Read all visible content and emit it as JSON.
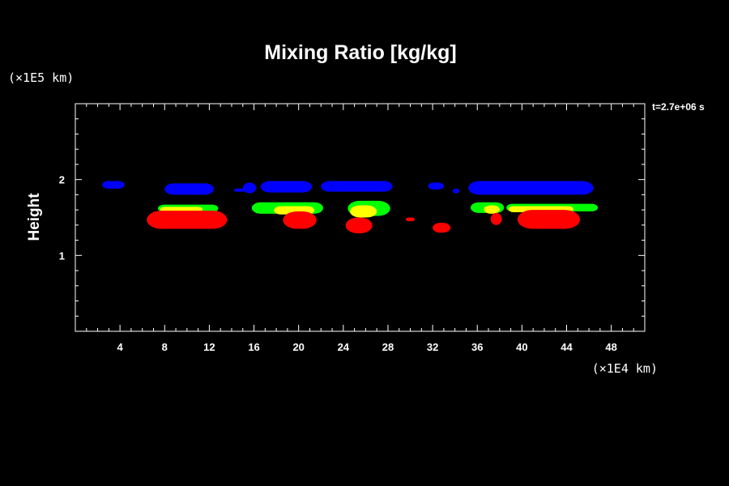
{
  "chart_data": {
    "type": "contour",
    "title": "Mixing Ratio [kg/kg]",
    "ylabel": "Height",
    "x_unit": "(×1E4 km)",
    "y_unit": "(×1E5 km)",
    "time_label": "t=2.7e+06 s",
    "xlim": [
      0,
      51
    ],
    "ylim": [
      0,
      3
    ],
    "x_ticks": [
      4,
      8,
      12,
      16,
      20,
      24,
      28,
      32,
      36,
      40,
      44,
      48
    ],
    "y_ticks": [
      1,
      2
    ],
    "x_minor_step": 1,
    "y_minor_step": 0.2,
    "colors": {
      "blue": "#0000ff",
      "green": "#00ff00",
      "yellow": "#ffff00",
      "red": "#ff0000"
    },
    "layers": [
      {
        "color": "blue",
        "blobs": [
          {
            "x": [
              2.4,
              4.4
            ],
            "y": [
              1.88,
              1.98
            ]
          },
          {
            "x": [
              8.0,
              12.4
            ],
            "y": [
              1.8,
              1.95
            ]
          },
          {
            "x": [
              14.2,
              15.2
            ],
            "y": [
              1.84,
              1.88
            ]
          },
          {
            "x": [
              15.0,
              16.2
            ],
            "y": [
              1.82,
              1.96
            ]
          },
          {
            "x": [
              16.6,
              21.2
            ],
            "y": [
              1.83,
              1.98
            ]
          },
          {
            "x": [
              22.0,
              28.4
            ],
            "y": [
              1.84,
              1.98
            ]
          },
          {
            "x": [
              31.6,
              33.0
            ],
            "y": [
              1.87,
              1.96
            ]
          },
          {
            "x": [
              33.8,
              34.4
            ],
            "y": [
              1.82,
              1.88
            ]
          },
          {
            "x": [
              35.2,
              46.4
            ],
            "y": [
              1.8,
              1.98
            ]
          }
        ]
      },
      {
        "color": "green",
        "blobs": [
          {
            "x": [
              7.4,
              12.8
            ],
            "y": [
              1.57,
              1.67
            ]
          },
          {
            "x": [
              15.8,
              22.2
            ],
            "y": [
              1.55,
              1.7
            ]
          },
          {
            "x": [
              24.4,
              28.2
            ],
            "y": [
              1.52,
              1.72
            ]
          },
          {
            "x": [
              35.4,
              38.4
            ],
            "y": [
              1.56,
              1.7
            ]
          },
          {
            "x": [
              38.6,
              46.8
            ],
            "y": [
              1.58,
              1.68
            ]
          }
        ]
      },
      {
        "color": "yellow",
        "blobs": [
          {
            "x": [
              7.6,
              11.4
            ],
            "y": [
              1.57,
              1.64
            ]
          },
          {
            "x": [
              17.8,
              21.4
            ],
            "y": [
              1.54,
              1.65
            ]
          },
          {
            "x": [
              24.6,
              27.0
            ],
            "y": [
              1.5,
              1.66
            ]
          },
          {
            "x": [
              36.6,
              38.0
            ],
            "y": [
              1.55,
              1.66
            ]
          },
          {
            "x": [
              38.8,
              44.6
            ],
            "y": [
              1.57,
              1.65
            ]
          }
        ]
      },
      {
        "color": "red",
        "blobs": [
          {
            "x": [
              6.4,
              13.6
            ],
            "y": [
              1.35,
              1.59
            ]
          },
          {
            "x": [
              18.6,
              21.6
            ],
            "y": [
              1.35,
              1.58
            ]
          },
          {
            "x": [
              24.2,
              26.6
            ],
            "y": [
              1.29,
              1.5
            ]
          },
          {
            "x": [
              29.6,
              30.4
            ],
            "y": [
              1.45,
              1.5
            ]
          },
          {
            "x": [
              32.0,
              33.6
            ],
            "y": [
              1.3,
              1.43
            ]
          },
          {
            "x": [
              37.2,
              38.2
            ],
            "y": [
              1.4,
              1.56
            ]
          },
          {
            "x": [
              39.6,
              45.2
            ],
            "y": [
              1.35,
              1.6
            ]
          }
        ]
      }
    ]
  }
}
